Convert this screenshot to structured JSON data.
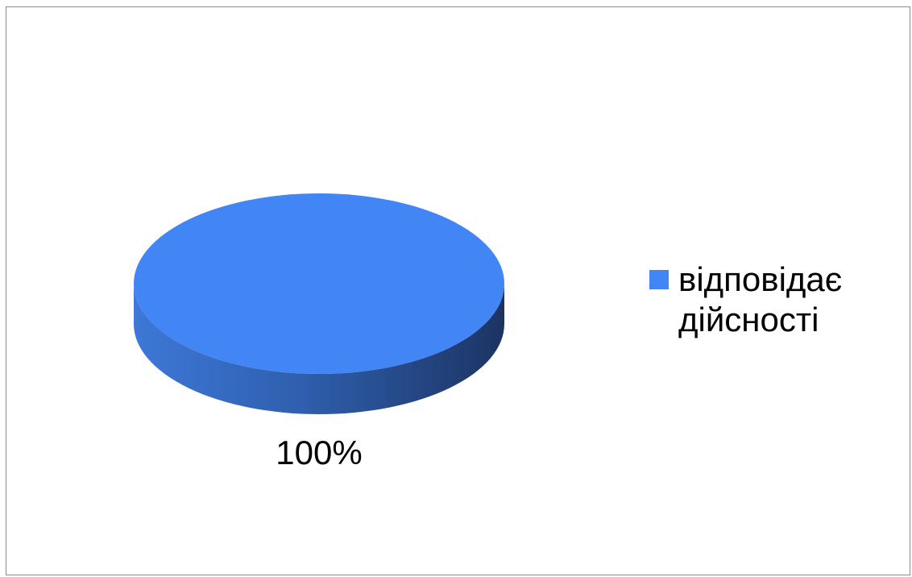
{
  "chart_data": {
    "type": "pie",
    "style": "3d",
    "title": "",
    "slices": [
      {
        "label": "відповідає\nдійсності",
        "value": 100,
        "data_label": "100%",
        "color": "#4285f4"
      }
    ],
    "legend": {
      "placement": "right",
      "entries": [
        "відповідає\nдійсності"
      ]
    }
  },
  "colors": {
    "top": "#4285f4",
    "side_light": "#3d78d8",
    "side_dark": "#1c3463",
    "border": "#8c8c8c"
  }
}
